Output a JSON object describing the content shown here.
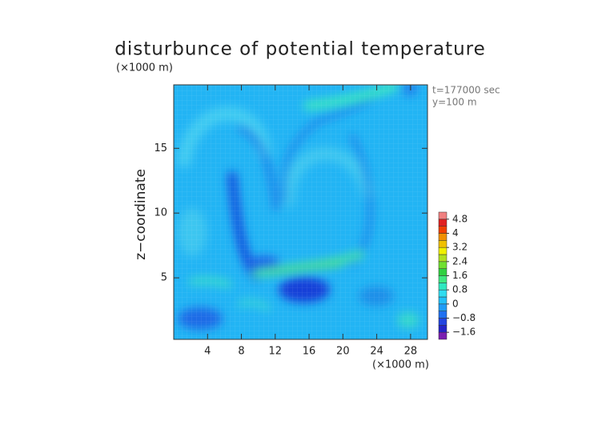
{
  "chart_data": {
    "type": "contour",
    "title": "disturbunce of potential temperature",
    "y_unit": "(×1000 m)",
    "x_unit": "(×1000 m)",
    "annotations": [
      "t=177000 sec",
      "y=100 m"
    ],
    "ylabel": "z−coordinate",
    "xlim": [
      0,
      30
    ],
    "xticks": [
      4,
      8,
      12,
      16,
      20,
      24,
      28
    ],
    "ylim": [
      0.25,
      19.9
    ],
    "yticks": [
      5,
      10,
      15
    ],
    "colorbar": {
      "levels": [
        -2,
        -1.6,
        -1.2,
        -0.8,
        -0.4,
        0,
        0.4,
        0.8,
        1.2,
        1.6,
        2,
        2.4,
        2.8,
        3.2,
        3.6,
        4,
        4.4,
        4.8,
        5.2
      ],
      "colors": [
        "#7a1fb0",
        "#2424c8",
        "#2244e0",
        "#2070f0",
        "#1f9cf6",
        "#22c0f8",
        "#30dcf0",
        "#30e8c0",
        "#40e880",
        "#30d040",
        "#70e030",
        "#b0e020",
        "#f0f000",
        "#f0c000",
        "#f09000",
        "#f04000",
        "#e02020",
        "#f08080"
      ],
      "ticks": [
        {
          "value": -1.6,
          "label": "−1.6"
        },
        {
          "value": -0.8,
          "label": "−0.8"
        },
        0,
        0.8,
        1.6,
        2.4,
        3.2,
        4,
        4.8
      ]
    }
  }
}
